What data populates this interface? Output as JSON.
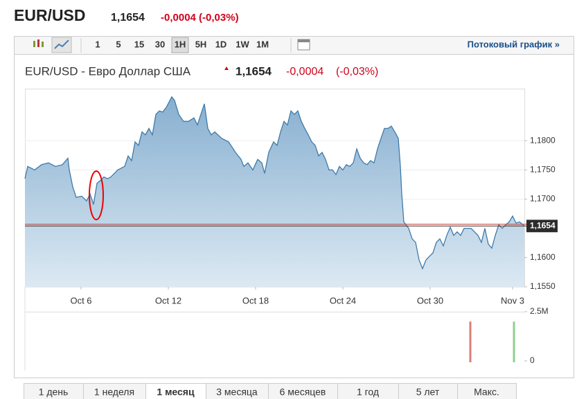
{
  "header": {
    "symbol": "EUR/USD",
    "price": "1,1654",
    "change": "-0,0004 (-0,03%)"
  },
  "toolbar": {
    "intervals": [
      "1",
      "5",
      "15",
      "30",
      "1H",
      "5H",
      "1D",
      "1W",
      "1M"
    ],
    "selected": "1H",
    "stream_link": "Потоковый график »"
  },
  "chart_data": {
    "type": "area",
    "title": "EUR/USD - Евро Доллар США",
    "quote": {
      "price": "1,1654",
      "change": "-0,0004",
      "change_pct": "(-0,03%)"
    },
    "color": "#3f7aa8",
    "x": [
      0,
      4,
      14,
      24,
      34,
      44,
      54,
      62,
      64,
      69,
      74,
      82,
      89,
      94,
      99,
      104,
      109,
      114,
      119,
      124,
      134,
      144,
      149,
      154,
      159,
      164,
      169,
      174,
      179,
      184,
      189,
      194,
      199,
      204,
      212,
      216,
      222,
      229,
      236,
      244,
      249,
      254,
      259,
      264,
      269,
      274,
      284,
      294,
      304,
      312,
      316,
      322,
      329,
      336,
      342,
      346,
      352,
      359,
      364,
      369,
      374,
      379,
      384,
      389,
      394,
      399,
      404,
      409,
      414,
      419,
      424,
      429,
      434,
      439,
      444,
      449,
      454,
      459,
      464,
      469,
      474,
      479,
      484,
      489,
      494,
      499,
      504,
      509,
      514,
      519,
      524,
      529,
      534,
      539,
      542,
      544,
      547,
      554,
      559,
      564,
      569,
      574,
      579,
      584,
      589,
      594,
      599,
      604,
      609,
      614,
      619,
      624,
      629,
      634,
      639,
      644,
      649,
      654,
      659,
      664,
      669,
      674,
      679,
      684,
      689,
      694,
      699,
      704,
      709,
      714,
      721
    ],
    "values": [
      1.1735,
      1.1756,
      1.175,
      1.1759,
      1.1762,
      1.1756,
      1.1759,
      1.177,
      1.175,
      1.1721,
      1.1703,
      1.1705,
      1.1697,
      1.1709,
      1.1691,
      1.1727,
      1.1732,
      1.1738,
      1.1735,
      1.1738,
      1.175,
      1.1756,
      1.1774,
      1.1766,
      1.1798,
      1.1792,
      1.1815,
      1.181,
      1.1821,
      1.181,
      1.1845,
      1.1851,
      1.1849,
      1.1857,
      1.1875,
      1.1869,
      1.1845,
      1.1833,
      1.1833,
      1.1839,
      1.1827,
      1.1845,
      1.1863,
      1.1821,
      1.181,
      1.1815,
      1.1804,
      1.1798,
      1.178,
      1.1768,
      1.1756,
      1.1762,
      1.175,
      1.1768,
      1.1762,
      1.1744,
      1.178,
      1.1798,
      1.1792,
      1.1815,
      1.1833,
      1.1827,
      1.1851,
      1.1845,
      1.1851,
      1.1833,
      1.1821,
      1.181,
      1.1798,
      1.1792,
      1.1774,
      1.178,
      1.1768,
      1.175,
      1.175,
      1.1742,
      1.1756,
      1.175,
      1.1759,
      1.1756,
      1.1762,
      1.1786,
      1.177,
      1.1762,
      1.1759,
      1.1766,
      1.1762,
      1.1786,
      1.1804,
      1.1821,
      1.1821,
      1.1825,
      1.1815,
      1.1804,
      1.1756,
      1.1709,
      1.1661,
      1.165,
      1.1632,
      1.1626,
      1.1596,
      1.1581,
      1.1596,
      1.1602,
      1.1608,
      1.1626,
      1.1632,
      1.162,
      1.1638,
      1.1652,
      1.1638,
      1.1644,
      1.1638,
      1.165,
      1.165,
      1.165,
      1.1644,
      1.1638,
      1.1626,
      1.165,
      1.1623,
      1.1616,
      1.1638,
      1.1656,
      1.165,
      1.1656,
      1.1661,
      1.1671,
      1.1659,
      1.1661,
      1.1654
    ],
    "xlim": [
      0,
      721
    ],
    "xticks": [
      {
        "value": 81,
        "label": "Oct 6"
      },
      {
        "value": 207,
        "label": "Oct 12"
      },
      {
        "value": 333,
        "label": "Oct 18"
      },
      {
        "value": 459,
        "label": "Oct 24"
      },
      {
        "value": 585,
        "label": "Oct 30"
      },
      {
        "value": 704,
        "label": "Nov 3"
      }
    ],
    "ylim": [
      1.155,
      1.1889
    ],
    "yticks": [
      {
        "value": 1.155,
        "label": "1,1550"
      },
      {
        "value": 1.16,
        "label": "1,1600"
      },
      {
        "value": 1.17,
        "label": "1,1700"
      },
      {
        "value": 1.175,
        "label": "1,1750"
      },
      {
        "value": 1.18,
        "label": "1,1800"
      }
    ],
    "grid": true,
    "last_value": {
      "value": 1.1654,
      "label": "1,1654"
    },
    "prev_close": 1.1657,
    "volume": {
      "x": [
        643,
        706
      ],
      "values": [
        2000000,
        2000000
      ],
      "colors": [
        "#d97f76",
        "#8ed08e"
      ],
      "ylim": [
        0,
        2500000
      ],
      "yticks": [
        {
          "value": 2500000,
          "label": "2.5M"
        },
        0
      ]
    }
  },
  "tabs": {
    "items": [
      "1 день",
      "1 неделя",
      "1 месяц",
      "3 месяца",
      "6 месяцев",
      "1 год",
      "5 лет",
      "Макс."
    ],
    "selected": "1 месяц"
  }
}
